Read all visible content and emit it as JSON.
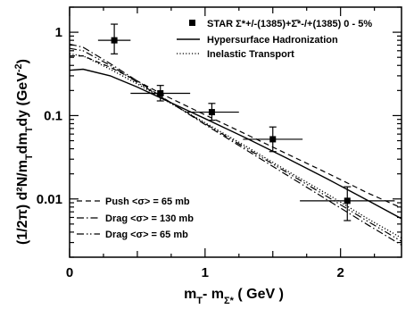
{
  "chart_data": {
    "type": "line",
    "xlabel": "m_T - m_Σ* ( GeV )",
    "ylabel": "(1/2π) d²N/m_T dm_T dy  (GeV⁻²)",
    "xlim": [
      0,
      2.45
    ],
    "ylim": [
      0.002,
      2.0
    ],
    "yscale": "log",
    "x_ticks": [
      0,
      1,
      2
    ],
    "x_tick_labels": [
      "0",
      "1",
      "2"
    ],
    "y_ticks": [
      0.01,
      0.1,
      1
    ],
    "y_tick_labels": [
      "0.01",
      "0.1",
      "1"
    ],
    "data_series": {
      "name": "STAR Σ*+/- (1385) + Σ̄*-/+ (1385)   0 - 5%",
      "marker": "filled-square",
      "points": [
        {
          "x": 0.33,
          "y": 0.8,
          "xerr": 0.12,
          "ylo": 0.55,
          "yhi": 1.25
        },
        {
          "x": 0.67,
          "y": 0.185,
          "xerr": 0.22,
          "ylo": 0.15,
          "yhi": 0.23
        },
        {
          "x": 1.05,
          "y": 0.11,
          "xerr": 0.2,
          "ylo": 0.088,
          "yhi": 0.14
        },
        {
          "x": 1.5,
          "y": 0.052,
          "xerr": 0.22,
          "ylo": 0.037,
          "yhi": 0.073
        },
        {
          "x": 2.05,
          "y": 0.0095,
          "xerr": 0.35,
          "ylo": 0.0055,
          "yhi": 0.014
        }
      ]
    },
    "series": [
      {
        "name": "Hypersurface Hadronization",
        "dash": "solid",
        "x": [
          0,
          0.1,
          0.3,
          0.5,
          0.7,
          1.0,
          1.3,
          1.6,
          1.9,
          2.2,
          2.45
        ],
        "y": [
          0.35,
          0.36,
          0.3,
          0.22,
          0.155,
          0.092,
          0.054,
          0.031,
          0.0175,
          0.0096,
          0.0058
        ]
      },
      {
        "name": "Inelastic Transport",
        "dash": "dotted",
        "x": [
          0,
          0.1,
          0.3,
          0.5,
          0.7,
          1.0,
          1.3,
          1.6,
          1.9,
          2.2,
          2.45
        ],
        "y": [
          0.55,
          0.52,
          0.36,
          0.24,
          0.155,
          0.082,
          0.043,
          0.022,
          0.0115,
          0.0058,
          0.0034
        ]
      },
      {
        "name": "Push <σ> = 65 mb",
        "dash": "dashed",
        "x": [
          0,
          0.1,
          0.3,
          0.5,
          0.7,
          1.0,
          1.3,
          1.6,
          1.9,
          2.2,
          2.45
        ],
        "y": [
          0.52,
          0.52,
          0.38,
          0.26,
          0.175,
          0.102,
          0.06,
          0.035,
          0.0205,
          0.0118,
          0.0078
        ]
      },
      {
        "name": "Drag <σ> = 130 mb",
        "dash": "dash-dot",
        "x": [
          0,
          0.1,
          0.3,
          0.5,
          0.7,
          1.0,
          1.3,
          1.6,
          1.9,
          2.2,
          2.45
        ],
        "y": [
          0.72,
          0.66,
          0.42,
          0.26,
          0.16,
          0.078,
          0.039,
          0.0195,
          0.0098,
          0.0049,
          0.0028
        ]
      },
      {
        "name": "Drag <σ> = 65 mb",
        "dash": "dash-dot-dot",
        "x": [
          0,
          0.1,
          0.3,
          0.5,
          0.7,
          1.0,
          1.3,
          1.6,
          1.9,
          2.2,
          2.45
        ],
        "y": [
          0.64,
          0.6,
          0.4,
          0.25,
          0.158,
          0.08,
          0.041,
          0.021,
          0.0107,
          0.0054,
          0.0031
        ]
      }
    ],
    "legend_top": [
      {
        "text": "STAR Σ*+/-(1385)+Σ̄*-/+(1385)    0 - 5%"
      },
      {
        "text": "Hypersurface Hadronization"
      },
      {
        "text": "Inelastic Transport"
      }
    ],
    "legend_bottom": [
      {
        "text": "Push <σ> = 65 mb"
      },
      {
        "text": "Drag <σ> = 130 mb"
      },
      {
        "text": "Drag <σ> = 65 mb"
      }
    ],
    "grid": false
  }
}
